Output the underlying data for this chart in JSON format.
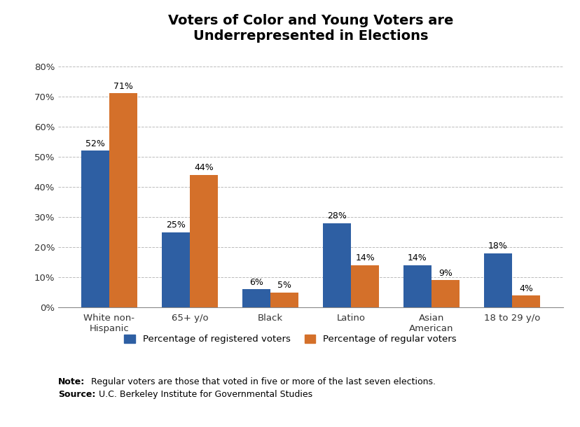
{
  "title": "Voters of Color and Young Voters are\nUnderrepresented in Elections",
  "categories": [
    "White non-\nHispanic",
    "65+ y/o",
    "Black",
    "Latino",
    "Asian\nAmerican",
    "18 to 29 y/o"
  ],
  "registered_voters": [
    52,
    25,
    6,
    28,
    14,
    18
  ],
  "regular_voters": [
    71,
    44,
    5,
    14,
    9,
    4
  ],
  "bar_color_registered": "#2E5FA3",
  "bar_color_regular": "#D4702A",
  "legend_registered": "Percentage of registered voters",
  "legend_regular": "Percentage of regular voters",
  "note_bold": "Note:",
  "note_text": " Regular voters are those that voted in five or more of the last seven elections.",
  "source_bold": "Source:",
  "source_text": " U.C. Berkeley Institute for Governmental Studies",
  "ylim": [
    0,
    85
  ],
  "yticks": [
    0,
    10,
    20,
    30,
    40,
    50,
    60,
    70,
    80
  ],
  "background_color": "#FFFFFF",
  "title_fontsize": 14,
  "bar_width": 0.35,
  "label_fontsize": 9,
  "tick_fontsize": 9.5,
  "legend_fontsize": 9.5,
  "note_fontsize": 9
}
